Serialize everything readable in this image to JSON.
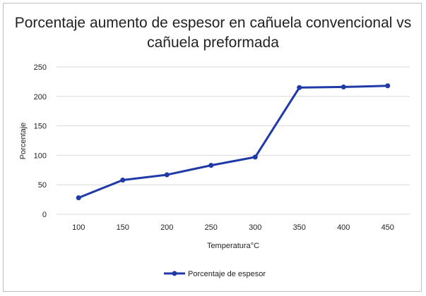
{
  "chart_data": {
    "type": "line",
    "title_line1": "Porcentaje aumento de espesor en cañuela convencional vs",
    "title_line2": "cañuela preformada",
    "xlabel": "Temperatura°C",
    "ylabel": "Porcentaje",
    "categories": [
      "100",
      "150",
      "200",
      "250",
      "300",
      "350",
      "400",
      "450"
    ],
    "series": [
      {
        "name": "Porcentaje de espesor",
        "values": [
          28,
          58,
          67,
          83,
          97,
          215,
          216,
          218
        ],
        "color": "#1f3aa8"
      }
    ],
    "ylim": [
      0,
      250
    ],
    "yticks": [
      "0",
      "50",
      "100",
      "150",
      "200",
      "250"
    ],
    "grid": true,
    "legend_position": "bottom"
  }
}
